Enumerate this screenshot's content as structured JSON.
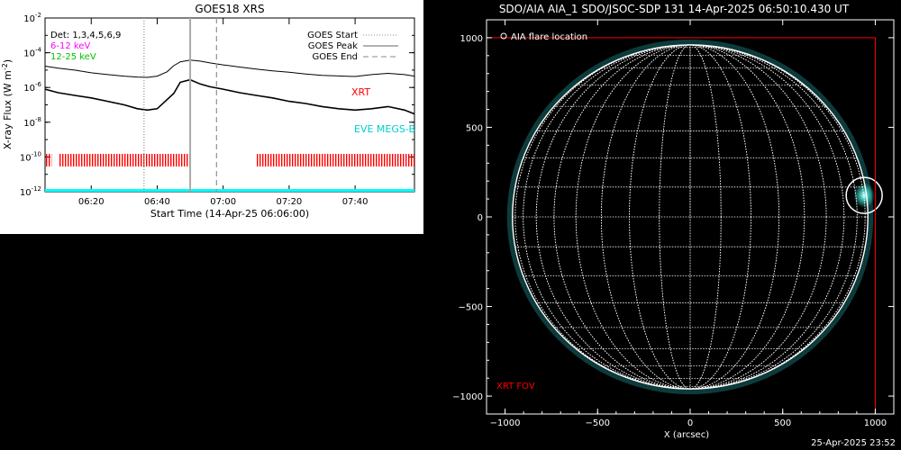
{
  "left_chart": {
    "title": "GOES18 XRS",
    "ylabel": "X-ray Flux (W m",
    "ylabel_sup": "-2",
    "ylabel_end": ")",
    "xlabel": "Start Time (14-Apr-25 06:06:00)",
    "legend_left": [
      {
        "text": "Det: 1,3,4,5,6,9",
        "color": "#ffffff"
      },
      {
        "text": "6-12 keV",
        "color": "#ff00ff"
      },
      {
        "text": "12-25 keV",
        "color": "#00ff00"
      }
    ],
    "legend_right": [
      {
        "text": "GOES Start",
        "style": "dotted"
      },
      {
        "text": "GOES Peak",
        "style": "solid"
      },
      {
        "text": "GOES End",
        "style": "dashed"
      }
    ],
    "label_xrt": "XRT",
    "label_eve": "EVE MEGS-B",
    "colors": {
      "xrt": "#ff0000",
      "eve": "#00ffff",
      "axes": "#000000",
      "curves": "#000000",
      "markers": "#aaaaaa"
    }
  },
  "right_chart": {
    "title": "SDO/AIA AIA_1 SDO/JSOC-SDP 131 14-Apr-2025 06:50:10.430 UT",
    "legend_text": "AIA flare location",
    "fov_label": "XRT FOV",
    "xlabel": "X (arcsec)",
    "colors": {
      "fov": "#ff0000",
      "grid": "#ffffff",
      "emission": "#40e0d0"
    }
  },
  "footer": {
    "timestamp": "25-Apr-2025 23:52"
  },
  "chart_data": [
    {
      "type": "line",
      "title": "GOES18 XRS",
      "xlabel": "Start Time (14-Apr-25 06:06:00)",
      "ylabel": "X-ray Flux (W m^-2)",
      "y_scale": "log",
      "xlim": [
        "06:06",
        "07:58"
      ],
      "ylim": [
        1e-12,
        0.01
      ],
      "x_ticks": [
        "06:20",
        "06:40",
        "07:00",
        "07:20",
        "07:40"
      ],
      "y_ticks": [
        "10^-12",
        "10^-10",
        "10^-8",
        "10^-6",
        "10^-4",
        "10^-2"
      ],
      "legend_placement": "top-right",
      "markers": [
        {
          "name": "GOES Start",
          "x": "06:36",
          "style": "dotted"
        },
        {
          "name": "GOES Peak",
          "x": "06:50",
          "style": "solid"
        },
        {
          "name": "GOES End",
          "x": "06:58",
          "style": "dashed"
        }
      ],
      "series": [
        {
          "x": [
            "06:06",
            "06:10",
            "06:15",
            "06:20",
            "06:25",
            "06:30",
            "06:34",
            "06:37",
            "06:40",
            "06:43",
            "06:45",
            "06:47",
            "06:50",
            "06:53",
            "06:56",
            "07:00",
            "07:05",
            "07:10",
            "07:15",
            "07:20",
            "07:25",
            "07:30",
            "07:35",
            "07:40",
            "07:45",
            "07:50",
            "07:55",
            "07:58"
          ],
          "values": [
            1.7e-05,
            1.3e-05,
            1e-05,
            7e-06,
            5.5e-06,
            4.5e-06,
            4e-06,
            3.8e-06,
            4.5e-06,
            8e-06,
            1.8e-05,
            3e-05,
            3.8e-05,
            3.3e-05,
            2.6e-05,
            2e-05,
            1.5e-05,
            1.15e-05,
            9e-06,
            7.5e-06,
            6e-06,
            5e-06,
            4.6e-06,
            4.3e-06,
            5.5e-06,
            6.5e-06,
            5.5e-06,
            4.5e-06
          ]
        },
        {
          "x": [
            "06:06",
            "06:10",
            "06:15",
            "06:20",
            "06:25",
            "06:30",
            "06:34",
            "06:37",
            "06:40",
            "06:43",
            "06:45",
            "06:47",
            "06:50",
            "06:53",
            "06:56",
            "07:00",
            "07:05",
            "07:10",
            "07:15",
            "07:20",
            "07:25",
            "07:30",
            "07:35",
            "07:40",
            "07:45",
            "07:50",
            "07:55",
            "07:58"
          ],
          "values": [
            8e-07,
            5e-07,
            3.5e-07,
            2.5e-07,
            1.6e-07,
            1e-07,
            6e-08,
            5e-08,
            6e-08,
            2e-07,
            4.5e-07,
            2e-06,
            2.8e-06,
            1.6e-06,
            1.1e-06,
            8e-07,
            5e-07,
            3.5e-07,
            2.5e-07,
            1.6e-07,
            1.2e-07,
            8e-08,
            6e-08,
            5e-08,
            6e-08,
            8e-08,
            5e-08,
            3e-08
          ]
        }
      ],
      "xrt_coverage": [
        [
          "06:06",
          "06:08"
        ],
        [
          "06:10",
          "06:50"
        ],
        [
          "07:10",
          "07:58"
        ]
      ],
      "eve_coverage": [
        [
          "06:06",
          "07:58"
        ]
      ]
    },
    {
      "type": "image",
      "title": "SDO/AIA AIA_1 SDO/JSOC-SDP 131 14-Apr-2025 06:50:10.430 UT",
      "xlabel": "X (arcsec)",
      "xlim": [
        -1100,
        1100
      ],
      "ylim": [
        -1100,
        1100
      ],
      "x_ticks": [
        -1000,
        -500,
        0,
        500,
        1000
      ],
      "y_ticks": [
        -1000,
        -500,
        0,
        500,
        1000
      ],
      "solar_radius_arcsec": 960,
      "flare_location": {
        "x": 940,
        "y": 120
      },
      "xrt_fov": {
        "x": [
          -1100,
          1000
        ],
        "y": [
          -1100,
          1000
        ]
      },
      "grid_on": true
    }
  ]
}
